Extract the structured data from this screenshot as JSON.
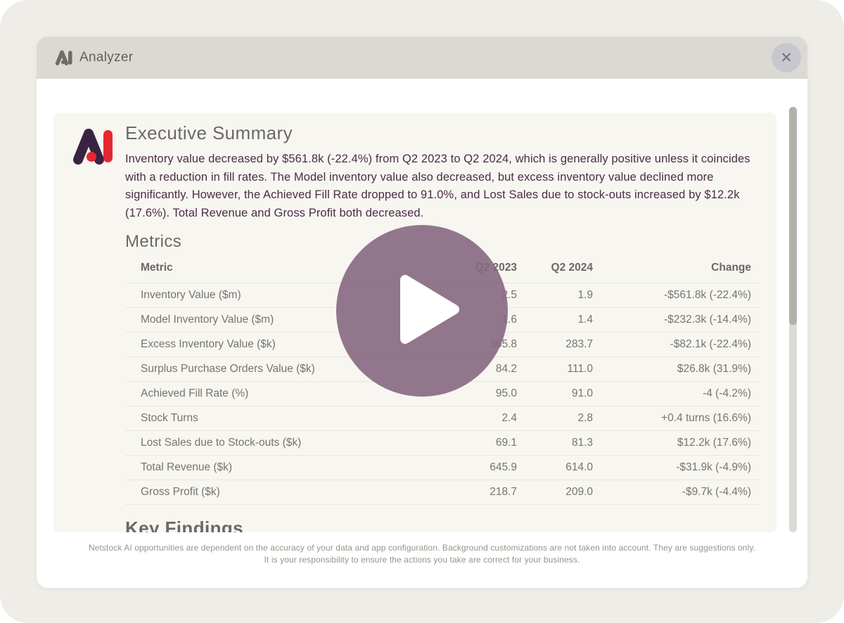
{
  "colors": {
    "page-bg": "#EFEDE8",
    "modal-bg": "#FFFFFF",
    "header-bg": "#DBD9D3",
    "panel-bg": "#F7F6F1",
    "close-btn-bg": "#C9C7CE",
    "heading-text": "#6B6965",
    "body-text": "#4C2C46",
    "table-text": "#76746F",
    "divider": "#E8E6E1",
    "footer-text": "#96938A",
    "scroll-track": "#DCDAD6",
    "scroll-thumb": "#B3B1AA",
    "logo-purple": "#3A2342",
    "logo-red": "#E62730",
    "logo-gray": "#6F6D68",
    "play-overlay": "rgba(134,104,127,0.9)"
  },
  "window": {
    "title": "Analyzer"
  },
  "icons": {
    "close": "✕",
    "play": "▶"
  },
  "summary": {
    "heading": "Executive Summary",
    "body": "Inventory value decreased by $561.8k (-22.4%) from Q2 2023 to Q2 2024, which is generally positive unless it coincides with a reduction in fill rates. The Model inventory value also decreased, but excess inventory value declined more significantly. However, the Achieved Fill Rate dropped to 91.0%, and Lost Sales due to stock-outs increased by $12.2k (17.6%). Total Revenue and Gross Profit both decreased."
  },
  "metrics": {
    "heading": "Metrics",
    "table": {
      "headers": [
        "Metric",
        "Q2 2023",
        "Q2 2024",
        "Change"
      ],
      "rows": [
        [
          "Inventory Value ($m)",
          "2.5",
          "1.9",
          "-$561.8k (-22.4%)"
        ],
        [
          "Model Inventory Value ($m)",
          "1.6",
          "1.4",
          "-$232.3k (-14.4%)"
        ],
        [
          "Excess Inventory Value ($k)",
          "365.8",
          "283.7",
          "-$82.1k (-22.4%)"
        ],
        [
          "Surplus Purchase Orders Value ($k)",
          "84.2",
          "111.0",
          "$26.8k (31.9%)"
        ],
        [
          "Achieved Fill Rate (%)",
          "95.0",
          "91.0",
          "-4 (-4.2%)"
        ],
        [
          "Stock Turns",
          "2.4",
          "2.8",
          "+0.4 turns (16.6%)"
        ],
        [
          "Lost Sales due to Stock-outs ($k)",
          "69.1",
          "81.3",
          "$12.2k (17.6%)"
        ],
        [
          "Total Revenue ($k)",
          "645.9",
          "614.0",
          "-$31.9k (-4.9%)"
        ],
        [
          "Gross Profit ($k)",
          "218.7",
          "209.0",
          "-$9.7k (-4.4%)"
        ]
      ]
    }
  },
  "key_findings": {
    "heading": "Key Findings"
  },
  "footer": {
    "line1": "Netstock AI opportunities are dependent on the accuracy of your data and app configuration. Background customizations are not taken into account. They are suggestions only.",
    "line2": "It is your responsibility to ensure the actions you take are correct for your business."
  }
}
